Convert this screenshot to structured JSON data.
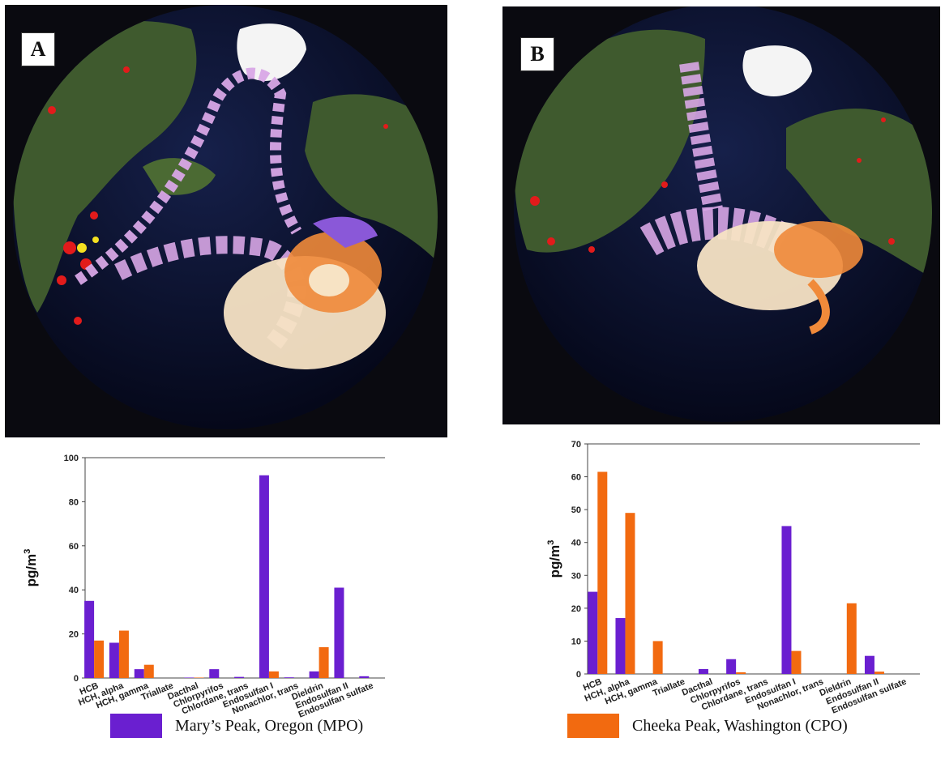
{
  "panels": [
    {
      "label": "A"
    },
    {
      "label": "B"
    }
  ],
  "colors": {
    "mpo": "#6a1fd0",
    "cpo": "#f26a10",
    "ocean": "#0b1230",
    "land": "#3f5a2e",
    "ice": "#f4f4f4",
    "fire": "#e21b1b",
    "plume_violet": "#d8a6e6",
    "plume_orange": "#f08a3a",
    "plume_cream": "#f7e3c4"
  },
  "legend": {
    "mpo": "Mary’s Peak, Oregon (MPO)",
    "cpo": "Cheeka Peak, Washington (CPO)"
  },
  "chart_data": [
    {
      "type": "bar",
      "title": "",
      "xlabel": "",
      "ylabel": "pg/m3",
      "ylim": [
        0,
        100
      ],
      "yticks": [
        0,
        20,
        40,
        60,
        80,
        100
      ],
      "grid": false,
      "categories": [
        "HCB",
        "HCH, alpha",
        "HCH, gamma",
        "Triallate",
        "Dacthal",
        "Chlorpyrifos",
        "Chlordane, trans",
        "Endosulfan I",
        "Nonachlor, trans",
        "Dieldrin",
        "Endosulfan II",
        "Endosulfan sulfate"
      ],
      "series": [
        {
          "name": "Mary’s Peak, Oregon (MPO)",
          "color": "#6a1fd0",
          "values": [
            35,
            16,
            4,
            0,
            0.2,
            4,
            0.5,
            92,
            0.3,
            3,
            41,
            0.8
          ]
        },
        {
          "name": "Cheeka Peak, Washington (CPO)",
          "color": "#f26a10",
          "values": [
            17,
            21.5,
            6,
            0,
            0.2,
            0,
            0,
            3,
            0,
            14,
            0,
            0
          ]
        }
      ]
    },
    {
      "type": "bar",
      "title": "",
      "xlabel": "",
      "ylabel": "pg/m3",
      "ylim": [
        0,
        70
      ],
      "yticks": [
        0,
        10,
        20,
        30,
        40,
        50,
        60,
        70
      ],
      "grid": false,
      "categories": [
        "HCB",
        "HCH, alpha",
        "HCH, gamma",
        "Triallate",
        "Dacthal",
        "Chlorpyrifos",
        "Chlordane, trans",
        "Endosulfan I",
        "Nonachlor, trans",
        "Dieldrin",
        "Endosulfan II",
        "Endosulfan sulfate"
      ],
      "series": [
        {
          "name": "Mary’s Peak, Oregon (MPO)",
          "color": "#6a1fd0",
          "values": [
            25,
            17,
            0,
            0,
            1.5,
            4.5,
            0,
            45,
            0,
            0,
            5.5,
            0
          ]
        },
        {
          "name": "Cheeka Peak, Washington (CPO)",
          "color": "#f26a10",
          "values": [
            61.5,
            49,
            10,
            0,
            0,
            0.5,
            0,
            7,
            0,
            21.5,
            0.7,
            0
          ]
        }
      ]
    }
  ]
}
